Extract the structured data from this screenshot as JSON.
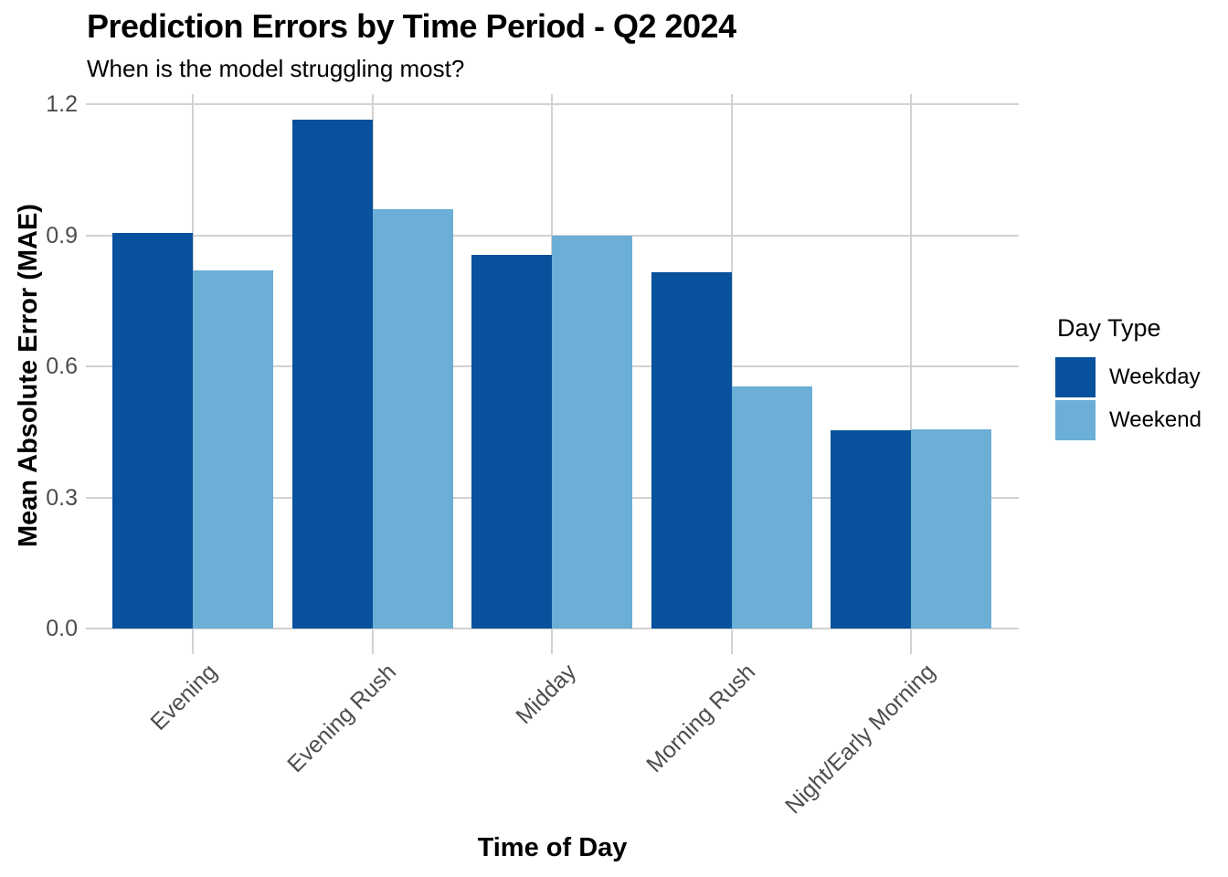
{
  "chart_data": {
    "type": "bar",
    "bar_grouping": "dodged",
    "title": "Prediction Errors by Time Period - Q2 2024",
    "subtitle": "When is the model struggling most?",
    "xlabel": "Time of Day",
    "ylabel": "Mean Absolute Error (MAE)",
    "categories": [
      "Evening",
      "Evening Rush",
      "Midday",
      "Morning Rush",
      "Night/Early Morning"
    ],
    "series": [
      {
        "name": "Weekday",
        "color": "#08519C",
        "values": [
          0.905,
          1.165,
          0.855,
          0.815,
          0.455
        ]
      },
      {
        "name": "Weekend",
        "color": "#6BAED6",
        "values": [
          0.82,
          0.96,
          0.9,
          0.555,
          0.456
        ]
      }
    ],
    "yticks": [
      "0.0",
      "0.3",
      "0.6",
      "0.9",
      "1.2"
    ],
    "ylim": [
      0,
      1.2
    ],
    "legend_title": "Day Type",
    "legend_position": "right",
    "grid": true
  },
  "colors": {
    "background": "#FFFFFF",
    "gridline": "#D2D2D2",
    "axis_text": "#4D4D4D",
    "heading_text": "#000000",
    "weekday_fill": "#08519C",
    "weekend_fill": "#6BAED6"
  }
}
